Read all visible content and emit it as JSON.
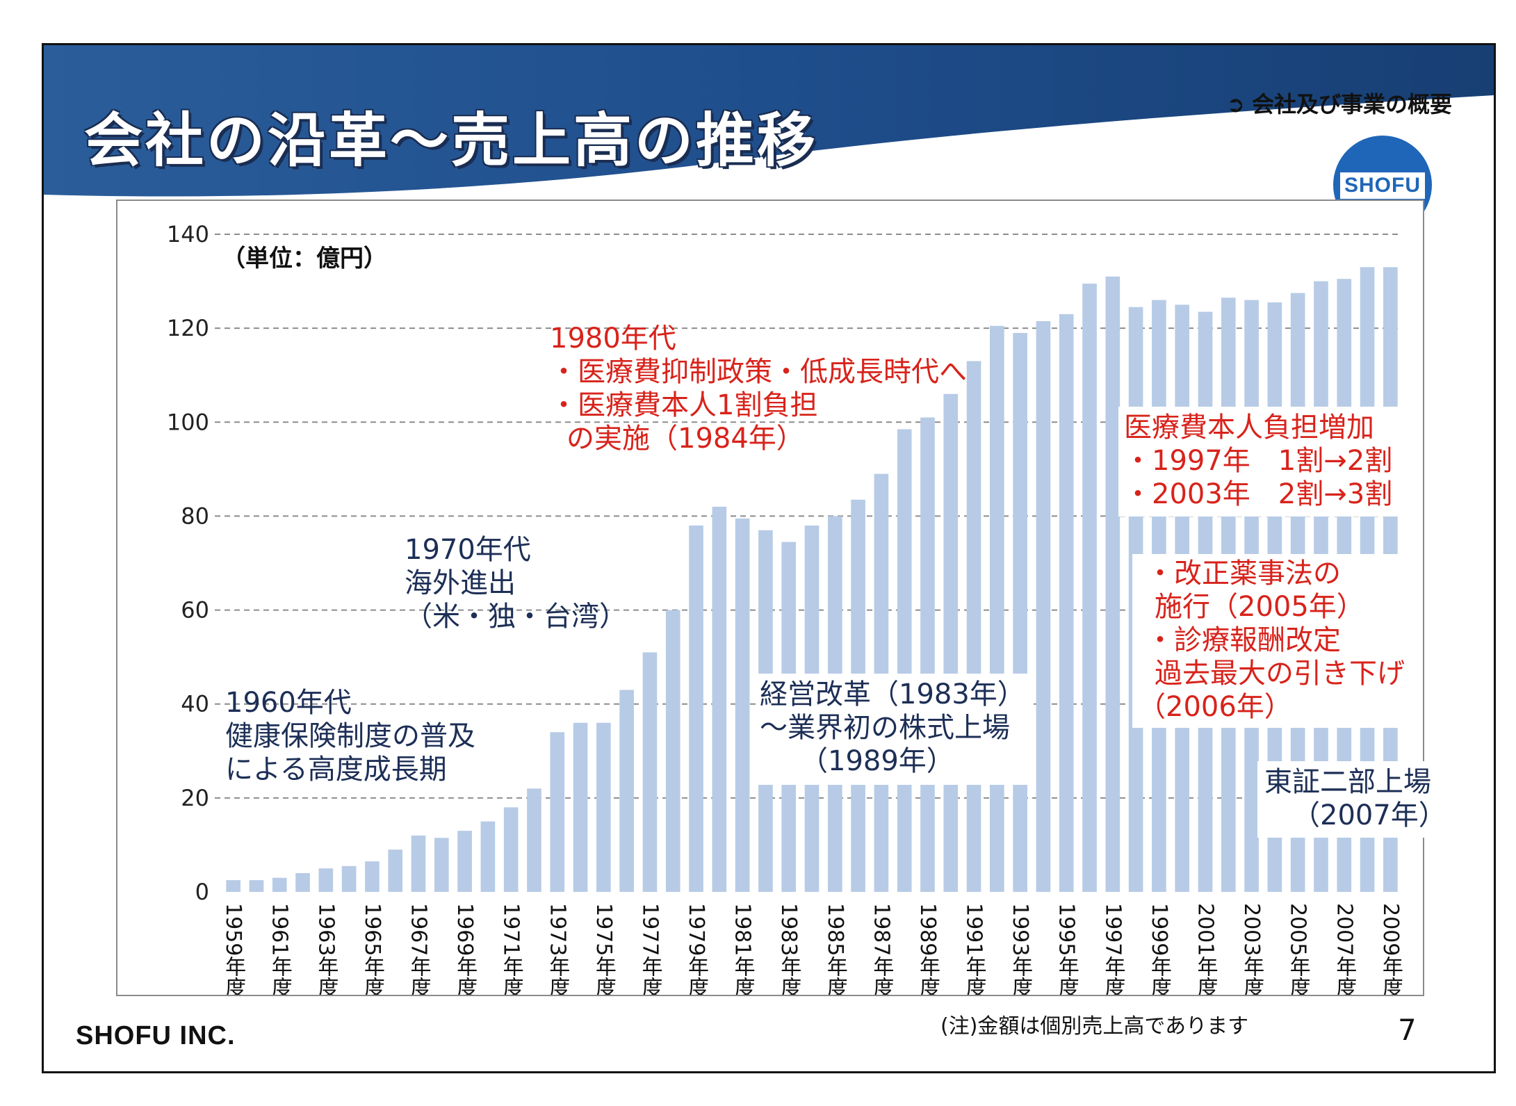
{
  "slide": {
    "title": "会社の沿革～売上高の推移",
    "section_label": "会社及び事業の概要",
    "section_icon": "circle-arrow-icon",
    "logo_text": "SHOFU",
    "company": "SHOFU INC.",
    "note": "(注)金額は個別売上高であります",
    "page_number": "7",
    "colors": {
      "banner": "#1f4e8c",
      "bar": "#b7cbe6",
      "red_text": "#d8231b",
      "navy_text": "#1d2f56",
      "logo": "#1f66b8"
    }
  },
  "annotations": {
    "era1960": {
      "line1": "1960年代",
      "line2": "健康保険制度の普及",
      "line3": "による高度成長期"
    },
    "era1970": {
      "line1": "1970年代",
      "line2": "海外進出",
      "line3": "（米・独・台湾）"
    },
    "era1980": {
      "line1": "1980年代",
      "line2": "・医療費抑制政策・低成長時代へ",
      "line3": "・医療費本人1割負担",
      "line4": "の実施（1984年）"
    },
    "reform": {
      "line1": "経営改革（1983年）",
      "line2": "～業界初の株式上場",
      "line3": "（1989年）"
    },
    "copay": {
      "line1": "医療費本人負担増加",
      "line2": "・1997年　1割→2割",
      "line3": "・2003年　2割→3割"
    },
    "pharma": {
      "line1": "・改正薬事法の",
      "line2": "施行（2005年）",
      "line3": "・診療報酬改定",
      "line4": "過去最大の引き下げ",
      "line5": "（2006年）"
    },
    "tse": {
      "line1": "東証二部上場",
      "line2": "（2007年）"
    }
  },
  "chart_data": {
    "type": "bar",
    "unit_label": "（単位：億円）",
    "ylim": [
      0,
      140
    ],
    "yticks": [
      0,
      20,
      40,
      60,
      80,
      100,
      120,
      140
    ],
    "grid": true,
    "categories": [
      "1959年度",
      "1960年度",
      "1961年度",
      "1962年度",
      "1963年度",
      "1964年度",
      "1965年度",
      "1966年度",
      "1967年度",
      "1968年度",
      "1969年度",
      "1970年度",
      "1971年度",
      "1972年度",
      "1973年度",
      "1974年度",
      "1975年度",
      "1976年度",
      "1977年度",
      "1978年度",
      "1979年度",
      "1980年度",
      "1981年度",
      "1982年度",
      "1983年度",
      "1984年度",
      "1985年度",
      "1986年度",
      "1987年度",
      "1988年度",
      "1989年度",
      "1990年度",
      "1991年度",
      "1992年度",
      "1993年度",
      "1994年度",
      "1995年度",
      "1996年度",
      "1997年度",
      "1998年度",
      "1999年度",
      "2000年度",
      "2001年度",
      "2002年度",
      "2003年度",
      "2004年度",
      "2005年度",
      "2006年度",
      "2007年度",
      "2008年度",
      "2009年度"
    ],
    "tick_labels": [
      "1959年度",
      "1961年度",
      "1963年度",
      "1965年度",
      "1967年度",
      "1969年度",
      "1971年度",
      "1973年度",
      "1975年度",
      "1977年度",
      "1979年度",
      "1981年度",
      "1983年度",
      "1985年度",
      "1987年度",
      "1989年度",
      "1991年度",
      "1993年度",
      "1995年度",
      "1997年度",
      "1999年度",
      "2001年度",
      "2003年度",
      "2005年度",
      "2007年度",
      "2009年度"
    ],
    "values": [
      2.5,
      2.5,
      3,
      4,
      5,
      5.5,
      6.5,
      9,
      12,
      11.5,
      13,
      15,
      18,
      22,
      34,
      36,
      36,
      43,
      51,
      60,
      78,
      82,
      79.5,
      77,
      74.5,
      78,
      80,
      83.5,
      89,
      98.5,
      101,
      106,
      113,
      120.5,
      119,
      121.5,
      123,
      129.5,
      131,
      124.5,
      126,
      125,
      123.5,
      126.5,
      126,
      125.5,
      127.5,
      130,
      130.5,
      133,
      133
    ]
  }
}
